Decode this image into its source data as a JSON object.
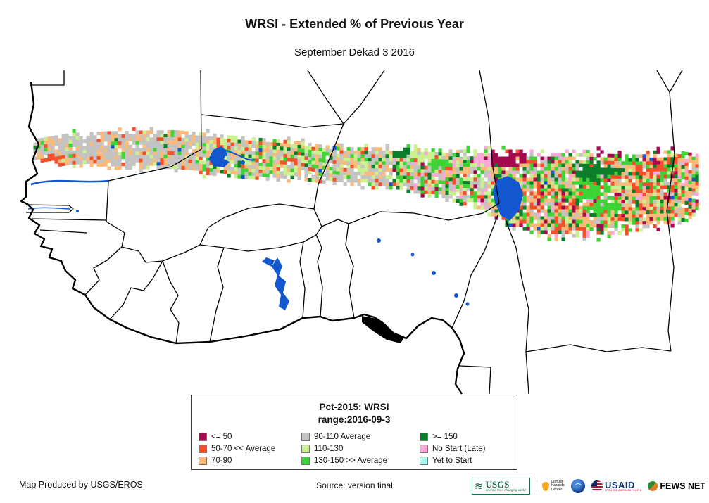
{
  "page": {
    "title": "WRSI - Extended % of Previous Year",
    "subtitle": "September Dekad 3 2016"
  },
  "legend": {
    "title_line1": "Pct-2015: WRSI",
    "title_line2": "range:2016-09-3",
    "items": [
      {
        "label": "<= 50",
        "color": "#A5094F"
      },
      {
        "label": "50-70 << Average",
        "color": "#F4502B"
      },
      {
        "label": "70-90",
        "color": "#FBBA79"
      },
      {
        "label": "90-110 Average",
        "color": "#C3C3C3"
      },
      {
        "label": "110-130",
        "color": "#C9F18F"
      },
      {
        "label": "130-150 >> Average",
        "color": "#3FD435"
      },
      {
        "label": ">= 150",
        "color": "#0B7D2B"
      },
      {
        "label": "No Start (Late)",
        "color": "#FBA8D8"
      },
      {
        "label": "Yet to Start",
        "color": "#A8FBF0"
      }
    ]
  },
  "map": {
    "water_color": "#1257D0",
    "border_color": "#000000",
    "coast_color": "#000000"
  },
  "footer": {
    "produced_by": "Map Produced by USGS/EROS",
    "source": "Source: version final"
  },
  "logos": {
    "usgs": {
      "name": "USGS",
      "tagline": "science for a changing world"
    },
    "chc": {
      "line1": "Climate",
      "line2": "Hazards",
      "line3": "Center"
    },
    "usaid": {
      "name": "USAID",
      "tagline": "FROM THE AMERICAN PEOPLE"
    },
    "fewsnet": {
      "name": "FEWS NET"
    }
  }
}
